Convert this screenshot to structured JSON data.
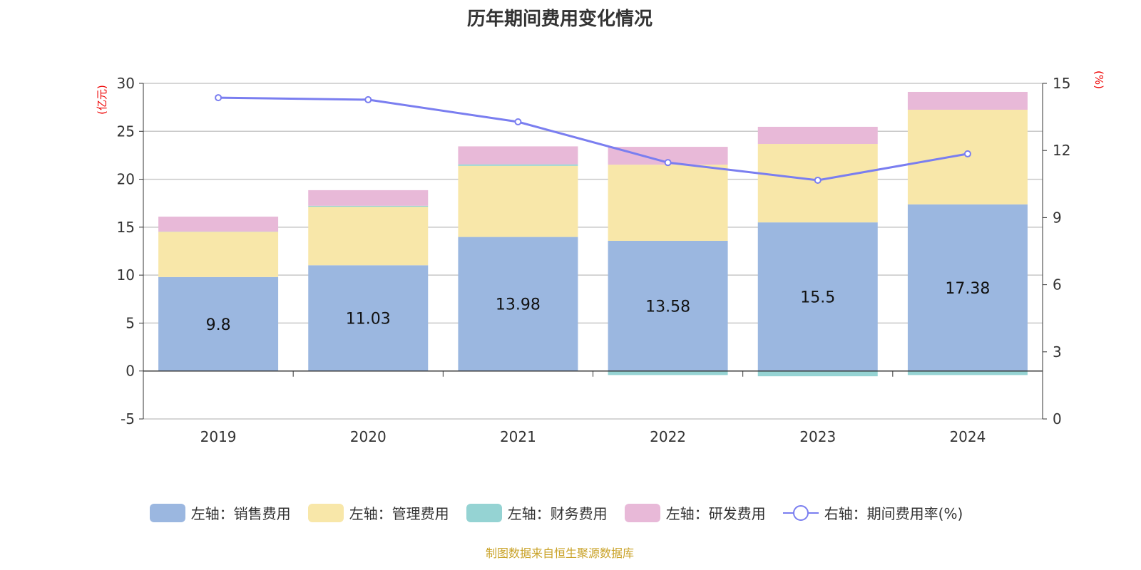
{
  "chart_data": {
    "type": "bar",
    "title": "历年期间费用变化情况",
    "categories": [
      "2019",
      "2020",
      "2021",
      "2022",
      "2023",
      "2024"
    ],
    "y_left": {
      "unit_label": "(亿元)",
      "range": [
        -5,
        30
      ],
      "ticks": [
        -5,
        0,
        5,
        10,
        15,
        20,
        25,
        30
      ]
    },
    "y_right": {
      "unit_label": "(%)",
      "range": [
        0,
        15
      ],
      "ticks": [
        0,
        3,
        6,
        9,
        12,
        15
      ]
    },
    "grid": true,
    "legend_position": "bottom",
    "series": [
      {
        "name": "左轴：销售费用",
        "axis": "left",
        "stack": true,
        "color": "#9bb7e0",
        "values": [
          9.8,
          11.03,
          13.98,
          13.58,
          15.5,
          17.38
        ],
        "labels_shown": true
      },
      {
        "name": "左轴：管理费用",
        "axis": "left",
        "stack": true,
        "color": "#f8e7a9",
        "values": [
          4.72,
          6.1,
          7.42,
          7.94,
          8.18,
          9.87
        ]
      },
      {
        "name": "左轴：财务费用",
        "axis": "left",
        "stack": true,
        "color": "#95d3d3",
        "values": [
          0.02,
          0.1,
          0.15,
          -0.42,
          -0.55,
          -0.42
        ]
      },
      {
        "name": "左轴：研发费用",
        "axis": "left",
        "stack": true,
        "color": "#e8b9d8",
        "values": [
          1.56,
          1.63,
          1.88,
          1.86,
          1.79,
          1.86
        ]
      },
      {
        "name": "右轴：期间费用率(%)",
        "axis": "right",
        "type": "line",
        "color": "#7a7ef0",
        "values": [
          14.36,
          14.27,
          13.28,
          11.46,
          10.67,
          11.85
        ]
      }
    ]
  },
  "source": "制图数据来自恒生聚源数据库"
}
